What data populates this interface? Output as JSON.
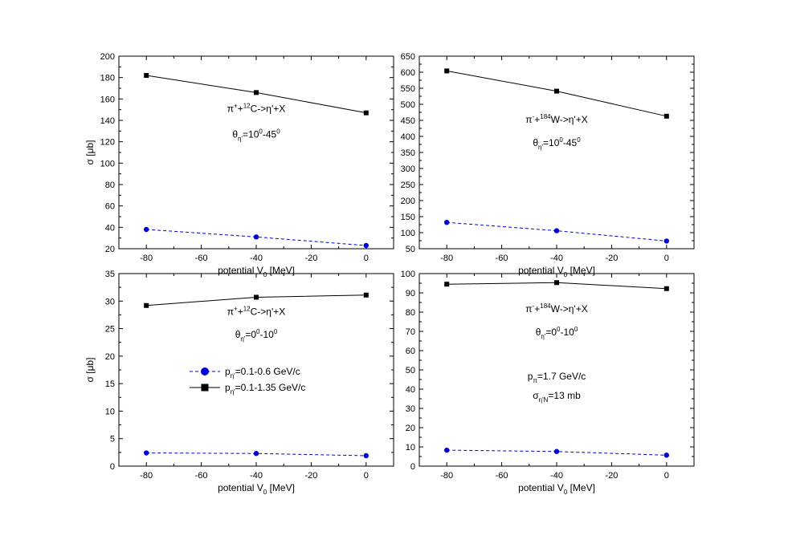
{
  "chart_data": [
    {
      "type": "line",
      "panel": "top-left",
      "title": "",
      "xlabel": "potential V",
      "xlabel_sub": "0",
      "xlabel_unit": " [MeV]",
      "ylabel": "σ [μb]",
      "xlim": [
        -90,
        10
      ],
      "ylim": [
        20,
        200
      ],
      "xticks": [
        -80,
        -60,
        -40,
        -20,
        0
      ],
      "yticks": [
        20,
        40,
        60,
        80,
        100,
        120,
        140,
        160,
        180,
        200
      ],
      "show_xlabel": true,
      "show_ylabel": true,
      "series": [
        {
          "x": [
            -80,
            -40,
            0
          ],
          "y": [
            182,
            166,
            147
          ],
          "color": "#000000",
          "marker": "square",
          "dash": "solid"
        },
        {
          "x": [
            -80,
            -40,
            0
          ],
          "y": [
            38,
            31,
            23
          ],
          "color": "#0000dd",
          "marker": "circle",
          "dash": "dashed"
        }
      ],
      "annotations": [
        {
          "segments": [
            [
              "π"
            ],
            [
              "+",
              "sup"
            ],
            [
              "+"
            ],
            [
              "12",
              "sup"
            ],
            [
              "C->η'+X"
            ]
          ],
          "at": [
            -40,
            148
          ]
        },
        {
          "segments": [
            [
              "θ"
            ],
            [
              "η'",
              "sub"
            ],
            [
              "=10"
            ],
            [
              "0",
              "sup"
            ],
            [
              "-45"
            ],
            [
              "0",
              "sup"
            ]
          ],
          "at": [
            -40,
            124
          ]
        }
      ]
    },
    {
      "type": "line",
      "panel": "top-right",
      "title": "",
      "xlabel": "potential V",
      "xlabel_sub": "0",
      "xlabel_unit": " [MeV]",
      "ylabel": "",
      "xlim": [
        -90,
        10
      ],
      "ylim": [
        50,
        650
      ],
      "xticks": [
        -80,
        -60,
        -40,
        -20,
        0
      ],
      "yticks": [
        50,
        100,
        150,
        200,
        250,
        300,
        350,
        400,
        450,
        500,
        550,
        600,
        650
      ],
      "show_xlabel": true,
      "show_ylabel": false,
      "series": [
        {
          "x": [
            -80,
            -40,
            0
          ],
          "y": [
            604,
            541,
            463
          ],
          "color": "#000000",
          "marker": "square",
          "dash": "solid"
        },
        {
          "x": [
            -80,
            -40,
            0
          ],
          "y": [
            132,
            106,
            74
          ],
          "color": "#0000dd",
          "marker": "circle",
          "dash": "dashed"
        }
      ],
      "annotations": [
        {
          "segments": [
            [
              "π"
            ],
            [
              "-",
              "sup"
            ],
            [
              "+"
            ],
            [
              "184",
              "sup"
            ],
            [
              "W->η'+X"
            ]
          ],
          "at": [
            -40,
            443
          ]
        },
        {
          "segments": [
            [
              "θ"
            ],
            [
              "η'",
              "sub"
            ],
            [
              "=10"
            ],
            [
              "0",
              "sup"
            ],
            [
              "-45"
            ],
            [
              "0",
              "sup"
            ]
          ],
          "at": [
            -40,
            370
          ]
        }
      ]
    },
    {
      "type": "line",
      "panel": "bottom-left",
      "title": "",
      "xlabel": "potential V",
      "xlabel_sub": "0",
      "xlabel_unit": " [MeV]",
      "ylabel": "σ [μb]",
      "xlim": [
        -90,
        10
      ],
      "ylim": [
        0,
        35
      ],
      "xticks": [
        -80,
        -60,
        -40,
        -20,
        0
      ],
      "yticks": [
        0,
        5,
        10,
        15,
        20,
        25,
        30,
        35
      ],
      "show_xlabel": true,
      "show_ylabel": true,
      "series": [
        {
          "x": [
            -80,
            -40,
            0
          ],
          "y": [
            29.2,
            30.7,
            31.1
          ],
          "color": "#000000",
          "marker": "square",
          "dash": "solid"
        },
        {
          "x": [
            -80,
            -40,
            0
          ],
          "y": [
            2.4,
            2.3,
            1.9
          ],
          "color": "#0000dd",
          "marker": "circle",
          "dash": "dashed"
        }
      ],
      "annotations": [
        {
          "segments": [
            [
              "π"
            ],
            [
              "+",
              "sup"
            ],
            [
              "+"
            ],
            [
              "12",
              "sup"
            ],
            [
              "C->η'+X"
            ]
          ],
          "at": [
            -40,
            27.5
          ]
        },
        {
          "segments": [
            [
              "θ"
            ],
            [
              "η'",
              "sub"
            ],
            [
              "=0"
            ],
            [
              "0",
              "sup"
            ],
            [
              "-10"
            ],
            [
              "0",
              "sup"
            ]
          ],
          "at": [
            -40,
            23.3
          ]
        }
      ],
      "legend": {
        "placement": "center-left",
        "entries": [
          {
            "segments": [
              [
                "p"
              ],
              [
                "η'",
                "sub"
              ],
              [
                "=0.1-0.6 GeV/c"
              ]
            ],
            "color": "#0000dd",
            "marker": "circle",
            "dash": "dashed"
          },
          {
            "segments": [
              [
                "p"
              ],
              [
                "η'",
                "sub"
              ],
              [
                "=0.1-1.35 GeV/c"
              ]
            ],
            "color": "#000000",
            "marker": "square",
            "dash": "solid"
          }
        ]
      }
    },
    {
      "type": "line",
      "panel": "bottom-right",
      "title": "",
      "xlabel": "potential V",
      "xlabel_sub": "0",
      "xlabel_unit": " [MeV]",
      "ylabel": "",
      "xlim": [
        -90,
        10
      ],
      "ylim": [
        0,
        100
      ],
      "xticks": [
        -80,
        -60,
        -40,
        -20,
        0
      ],
      "yticks": [
        0,
        10,
        20,
        30,
        40,
        50,
        60,
        70,
        80,
        90,
        100
      ],
      "show_xlabel": true,
      "show_ylabel": false,
      "series": [
        {
          "x": [
            -80,
            -40,
            0
          ],
          "y": [
            94.5,
            95.3,
            92.2
          ],
          "color": "#000000",
          "marker": "square",
          "dash": "solid"
        },
        {
          "x": [
            -80,
            -40,
            0
          ],
          "y": [
            8.3,
            7.6,
            5.7
          ],
          "color": "#0000dd",
          "marker": "circle",
          "dash": "dashed"
        }
      ],
      "annotations": [
        {
          "segments": [
            [
              "π"
            ],
            [
              "-",
              "sup"
            ],
            [
              "+"
            ],
            [
              "184",
              "sup"
            ],
            [
              "W->η'+X"
            ]
          ],
          "at": [
            -40,
            80
          ]
        },
        {
          "segments": [
            [
              "θ"
            ],
            [
              "η'",
              "sub"
            ],
            [
              "=0"
            ],
            [
              "0",
              "sup"
            ],
            [
              "-10"
            ],
            [
              "0",
              "sup"
            ]
          ],
          "at": [
            -40,
            68
          ]
        },
        {
          "segments": [
            [
              "p"
            ],
            [
              "π",
              "sub"
            ],
            [
              "=1.7 GeV/c"
            ]
          ],
          "at": [
            -40,
            45
          ]
        },
        {
          "segments": [
            [
              "σ"
            ],
            [
              "η'N",
              "sub"
            ],
            [
              "=13 mb"
            ]
          ],
          "at": [
            -40,
            35
          ]
        }
      ]
    }
  ]
}
